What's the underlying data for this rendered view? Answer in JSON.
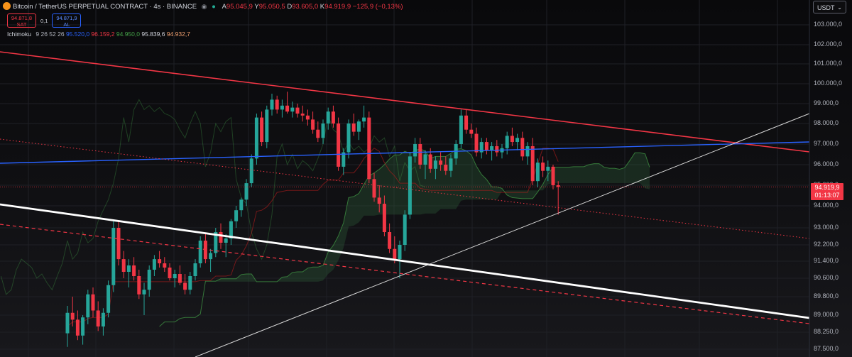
{
  "header": {
    "symbol": "Bitcoin / TetherUS PERPETUAL CONTRACT · 4s · BINANCE",
    "open": "95.045,9",
    "high": "95.050,5",
    "low": "93.605,0",
    "close": "94.919,9",
    "change": "−125,9 (−0,13%)"
  },
  "trade": {
    "sell_price": "94.871,8",
    "sell_label": "SAT",
    "spread": "0,1",
    "buy_price": "94.871,9",
    "buy_label": "AL"
  },
  "indicator": {
    "name": "Ichimoku",
    "params": "9 26 52 26",
    "v1": "95.520,0",
    "v2": "96.159,2",
    "v3": "94.950,0",
    "v4": "95.839,6",
    "v5": "94.932,7"
  },
  "currency": "USDT",
  "current_price": {
    "price": "94.919,9",
    "countdown": "01:13:07"
  },
  "colors": {
    "up": "#26a69a",
    "down": "#f23645",
    "conversion": "#2962ff",
    "base": "#b71c1c",
    "lagging": "#43a047",
    "cloud_up": "#2e5e3a",
    "cloud_down": "#7a2730",
    "resistance": "#f23645",
    "blue_line": "#2962ff"
  },
  "chart_data": {
    "type": "candlestick",
    "symbol": "Bitcoin / TetherUS PERPETUAL CONTRACT",
    "y_ticks": [
      "103.000,0",
      "102.000,0",
      "101.000,0",
      "100.000,0",
      "99.000,0",
      "98.000,0",
      "97.000,0",
      "96.000,0",
      "95.000,0",
      "94.000,0",
      "93.000,0",
      "92.200,0",
      "91.400,0",
      "90.600,0",
      "89.800,0",
      "89.000,0",
      "88.250,0",
      "87.500,0"
    ],
    "y_tick_values": [
      103000,
      102000,
      101000,
      100000,
      99000,
      98000,
      97000,
      96000,
      95000,
      94000,
      93000,
      92200,
      91400,
      90600,
      89800,
      89000,
      88250,
      87500
    ],
    "candles": [
      [
        88200,
        89400,
        87600,
        89100
      ],
      [
        89100,
        89800,
        88500,
        88800
      ],
      [
        88800,
        89200,
        87900,
        88100
      ],
      [
        88100,
        89000,
        87700,
        88900
      ],
      [
        88900,
        90100,
        88600,
        89900
      ],
      [
        89900,
        90200,
        88900,
        89200
      ],
      [
        89200,
        89600,
        88300,
        88500
      ],
      [
        88500,
        89300,
        88100,
        89100
      ],
      [
        89100,
        90500,
        88900,
        90300
      ],
      [
        90300,
        93300,
        90000,
        93000
      ],
      [
        93000,
        93300,
        91200,
        91500
      ],
      [
        91500,
        91900,
        90600,
        90900
      ],
      [
        90900,
        91500,
        90200,
        91200
      ],
      [
        91200,
        91600,
        90500,
        90700
      ],
      [
        90700,
        91000,
        89700,
        89900
      ],
      [
        89900,
        90400,
        89000,
        90100
      ],
      [
        90100,
        91200,
        89800,
        91000
      ],
      [
        91000,
        91700,
        90700,
        91500
      ],
      [
        91500,
        91900,
        91100,
        91300
      ],
      [
        91300,
        91600,
        90900,
        91100
      ],
      [
        91100,
        91300,
        90500,
        90600
      ],
      [
        90600,
        91000,
        90200,
        90800
      ],
      [
        90800,
        91200,
        90300,
        90400
      ],
      [
        90400,
        90800,
        89900,
        90100
      ],
      [
        90100,
        90900,
        89900,
        90700
      ],
      [
        90700,
        91500,
        90500,
        91300
      ],
      [
        91300,
        92600,
        91100,
        92400
      ],
      [
        92400,
        92700,
        91300,
        91500
      ],
      [
        91500,
        92000,
        90900,
        91800
      ],
      [
        91800,
        93000,
        91600,
        92800
      ],
      [
        92800,
        93200,
        92000,
        92300
      ],
      [
        92300,
        92700,
        91600,
        92500
      ],
      [
        92500,
        93400,
        92200,
        93300
      ],
      [
        93300,
        94000,
        93000,
        93800
      ],
      [
        93800,
        94400,
        93500,
        94300
      ],
      [
        94300,
        95300,
        94000,
        95100
      ],
      [
        95100,
        96500,
        94900,
        96300
      ],
      [
        96300,
        98500,
        96000,
        98300
      ],
      [
        98300,
        98600,
        96900,
        97100
      ],
      [
        97100,
        98900,
        96800,
        98700
      ],
      [
        98700,
        99500,
        98400,
        99200
      ],
      [
        99200,
        99400,
        98500,
        98700
      ],
      [
        98700,
        99200,
        98300,
        98900
      ],
      [
        98900,
        99600,
        98500,
        98600
      ],
      [
        98600,
        99100,
        98300,
        98800
      ],
      [
        98800,
        99000,
        98300,
        98500
      ],
      [
        98500,
        98900,
        98100,
        98400
      ],
      [
        98400,
        98700,
        97900,
        98200
      ],
      [
        98200,
        98600,
        97500,
        97700
      ],
      [
        97700,
        98100,
        97100,
        97300
      ],
      [
        97300,
        98200,
        97000,
        98000
      ],
      [
        98000,
        98800,
        97700,
        98600
      ],
      [
        98600,
        98900,
        97800,
        98000
      ],
      [
        98000,
        98300,
        95700,
        95900
      ],
      [
        95900,
        96800,
        95500,
        96600
      ],
      [
        96600,
        98200,
        96300,
        98000
      ],
      [
        98000,
        98500,
        97400,
        97600
      ],
      [
        97600,
        98200,
        97200,
        98100
      ],
      [
        98100,
        98900,
        97800,
        98300
      ],
      [
        98300,
        98600,
        95100,
        95300
      ],
      [
        95300,
        95600,
        94200,
        94400
      ],
      [
        94400,
        95000,
        93700,
        94100
      ],
      [
        94100,
        94500,
        92600,
        92800
      ],
      [
        92800,
        93200,
        91800,
        92000
      ],
      [
        92000,
        92600,
        91300,
        91500
      ],
      [
        91500,
        92400,
        90600,
        92200
      ],
      [
        92200,
        93800,
        91900,
        93600
      ],
      [
        93600,
        96600,
        93400,
        96400
      ],
      [
        96400,
        97300,
        96100,
        97000
      ],
      [
        97000,
        97300,
        95800,
        96000
      ],
      [
        96000,
        96700,
        95300,
        96500
      ],
      [
        96500,
        96800,
        95600,
        95800
      ],
      [
        95800,
        96400,
        95300,
        96200
      ],
      [
        96200,
        96600,
        95700,
        96000
      ],
      [
        96000,
        96400,
        95500,
        95700
      ],
      [
        95700,
        96500,
        95400,
        96300
      ],
      [
        96300,
        97200,
        96000,
        97000
      ],
      [
        97000,
        98700,
        96800,
        98400
      ],
      [
        98400,
        98700,
        97500,
        97700
      ],
      [
        97700,
        98000,
        97300,
        97500
      ],
      [
        97500,
        97800,
        96400,
        96600
      ],
      [
        96600,
        97300,
        96300,
        97100
      ],
      [
        97100,
        97300,
        96500,
        96700
      ],
      [
        96700,
        97100,
        96200,
        96900
      ],
      [
        96900,
        97200,
        96400,
        96600
      ],
      [
        96600,
        97000,
        96300,
        96800
      ],
      [
        96800,
        97600,
        96500,
        97400
      ],
      [
        97400,
        97800,
        96900,
        97100
      ],
      [
        97100,
        97500,
        96700,
        97300
      ],
      [
        97300,
        97600,
        96200,
        96400
      ],
      [
        96400,
        97100,
        96000,
        96900
      ],
      [
        96900,
        97300,
        95000,
        95200
      ],
      [
        95200,
        96300,
        94900,
        96100
      ],
      [
        96100,
        96400,
        95400,
        95700
      ],
      [
        95700,
        96200,
        95200,
        95900
      ],
      [
        95900,
        96000,
        94800,
        95000
      ],
      [
        95000,
        95200,
        93600,
        94920
      ]
    ]
  }
}
